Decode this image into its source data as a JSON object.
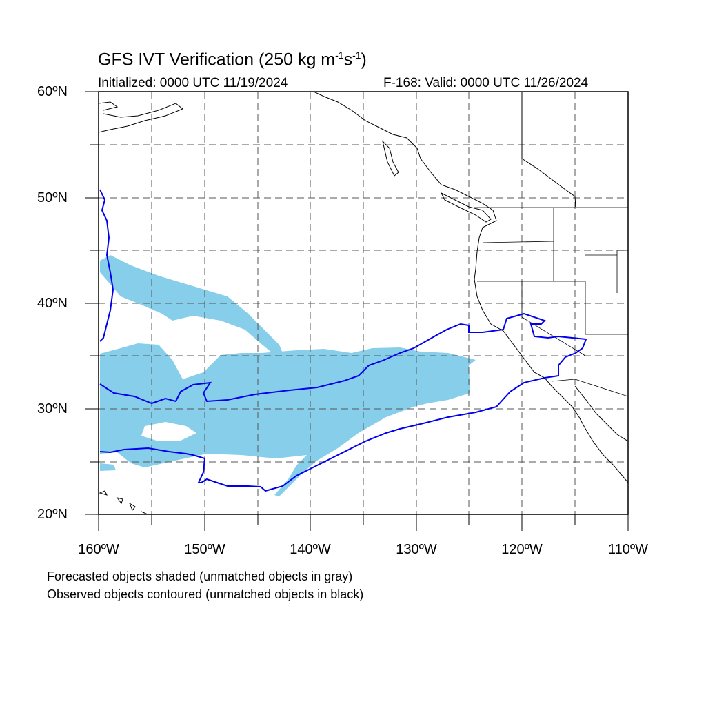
{
  "header": {
    "title_main": "GFS IVT Verification (250 kg m",
    "title_exp1": "-1",
    "title_mid": "s",
    "title_exp2": "-1",
    "title_end": ")",
    "initialized": "Initialized: 0000 UTC 11/19/2024",
    "valid": "F-168: Valid: 0000 UTC 11/26/2024"
  },
  "axes": {
    "lat_labels": [
      "60ºN",
      "50ºN",
      "40ºN",
      "30ºN",
      "20ºN"
    ],
    "lon_labels": [
      "160ºW",
      "150ºW",
      "140ºW",
      "130ºW",
      "120ºW",
      "110ºW"
    ],
    "lon_range": [
      -160,
      -110
    ],
    "lat_range": [
      20,
      60
    ],
    "grid": "dashed every 5 degrees"
  },
  "legend": {
    "line1": "Forecasted objects shaded (unmatched objects in gray)",
    "line2": "Observed objects contoured (unmatched objects in black)"
  },
  "colors": {
    "forecast_fill": "#87ceeb",
    "observed_contour": "#0000ee",
    "coastline": "#000000",
    "grid": "#555555"
  }
}
